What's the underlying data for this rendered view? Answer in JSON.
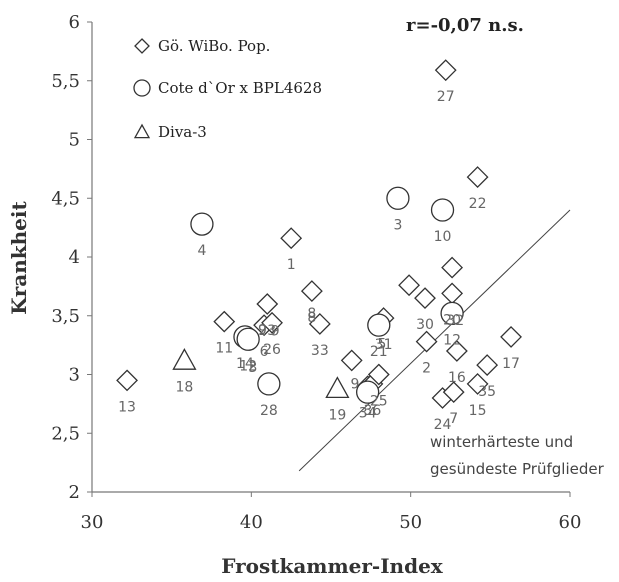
{
  "chart_data": {
    "type": "scatter",
    "title": "",
    "xlabel": "Frostkammer-Index",
    "ylabel": "Krankheit",
    "xlim": [
      30,
      60
    ],
    "ylim": [
      2,
      6
    ],
    "xticks": [
      "30",
      "40",
      "50",
      "60"
    ],
    "yticks": [
      "2",
      "2,5",
      "3",
      "3,5",
      "4",
      "4,5",
      "5",
      "5,5",
      "6"
    ],
    "grid": false,
    "legend_position": "top-left",
    "stat_text": "r=-0,07 n.s.",
    "annotation": [
      "winterhärteste und",
      "gesündeste Prüfglieder"
    ],
    "reference_line": {
      "x1": 43,
      "y1": 2.18,
      "x2": 60,
      "y2": 4.4
    },
    "series": [
      {
        "name": "Gö. WiBo. Pop.",
        "marker": "diamond",
        "points": [
          {
            "x": 32.2,
            "y": 2.95,
            "label": "13"
          },
          {
            "x": 38.3,
            "y": 3.45,
            "label": "11"
          },
          {
            "x": 41.0,
            "y": 3.6,
            "label": "23"
          },
          {
            "x": 40.8,
            "y": 3.42,
            "label": "6"
          },
          {
            "x": 41.3,
            "y": 3.44,
            "label": "26"
          },
          {
            "x": 42.5,
            "y": 4.16,
            "label": "1"
          },
          {
            "x": 43.8,
            "y": 3.71,
            "label": "8"
          },
          {
            "x": 44.3,
            "y": 3.43,
            "label": "33"
          },
          {
            "x": 46.3,
            "y": 3.12,
            "label": ""
          },
          {
            "x": 47.3,
            "y": 2.9,
            "label": "34"
          },
          {
            "x": 47.6,
            "y": 2.92,
            "label": "36"
          },
          {
            "x": 48.0,
            "y": 3.0,
            "label": "25"
          },
          {
            "x": 48.3,
            "y": 3.48,
            "label": "31"
          },
          {
            "x": 49.9,
            "y": 3.76,
            "label": ""
          },
          {
            "x": 50.9,
            "y": 3.65,
            "label": "30"
          },
          {
            "x": 51.0,
            "y": 3.28,
            "label": "2"
          },
          {
            "x": 52.0,
            "y": 2.8,
            "label": "24"
          },
          {
            "x": 52.2,
            "y": 5.59,
            "label": "27"
          },
          {
            "x": 52.6,
            "y": 3.91,
            "label": ""
          },
          {
            "x": 52.6,
            "y": 3.69,
            "label": "20"
          },
          {
            "x": 52.7,
            "y": 2.85,
            "label": "7"
          },
          {
            "x": 52.9,
            "y": 3.2,
            "label": "16"
          },
          {
            "x": 54.2,
            "y": 4.68,
            "label": "22"
          },
          {
            "x": 54.2,
            "y": 2.92,
            "label": "15"
          },
          {
            "x": 54.8,
            "y": 3.08,
            "label": "35"
          },
          {
            "x": 56.3,
            "y": 3.32,
            "label": "17"
          }
        ]
      },
      {
        "name": "Cote d`Or x BPL4628",
        "marker": "circle",
        "points": [
          {
            "x": 36.9,
            "y": 4.28,
            "label": "4"
          },
          {
            "x": 39.6,
            "y": 3.32,
            "label": "14"
          },
          {
            "x": 39.8,
            "y": 3.3,
            "label": "12"
          },
          {
            "x": 41.1,
            "y": 2.92,
            "label": "28"
          },
          {
            "x": 47.3,
            "y": 2.85,
            "label": ""
          },
          {
            "x": 48.0,
            "y": 3.42,
            "label": "21"
          },
          {
            "x": 49.2,
            "y": 4.5,
            "label": "3"
          },
          {
            "x": 52.0,
            "y": 4.4,
            "label": "10"
          },
          {
            "x": 52.6,
            "y": 3.52,
            "label": "12"
          }
        ]
      },
      {
        "name": "Diva-3",
        "marker": "triangle",
        "points": [
          {
            "x": 35.8,
            "y": 3.12,
            "label": "18"
          },
          {
            "x": 45.4,
            "y": 2.88,
            "label": "19"
          }
        ]
      }
    ],
    "extra_labels": [
      {
        "x": 48.2,
        "y": 3.22,
        "text": "5"
      },
      {
        "x": 52.8,
        "y": 3.42,
        "text": "32"
      },
      {
        "x": 43.8,
        "y": 3.48,
        "text": "8"
      },
      {
        "x": 40.1,
        "y": 3.02,
        "text": "3"
      },
      {
        "x": 40.7,
        "y": 3.34,
        "text": "9"
      },
      {
        "x": 41.5,
        "y": 3.33,
        "text": "9"
      },
      {
        "x": 46.5,
        "y": 2.88,
        "text": "9"
      }
    ]
  }
}
